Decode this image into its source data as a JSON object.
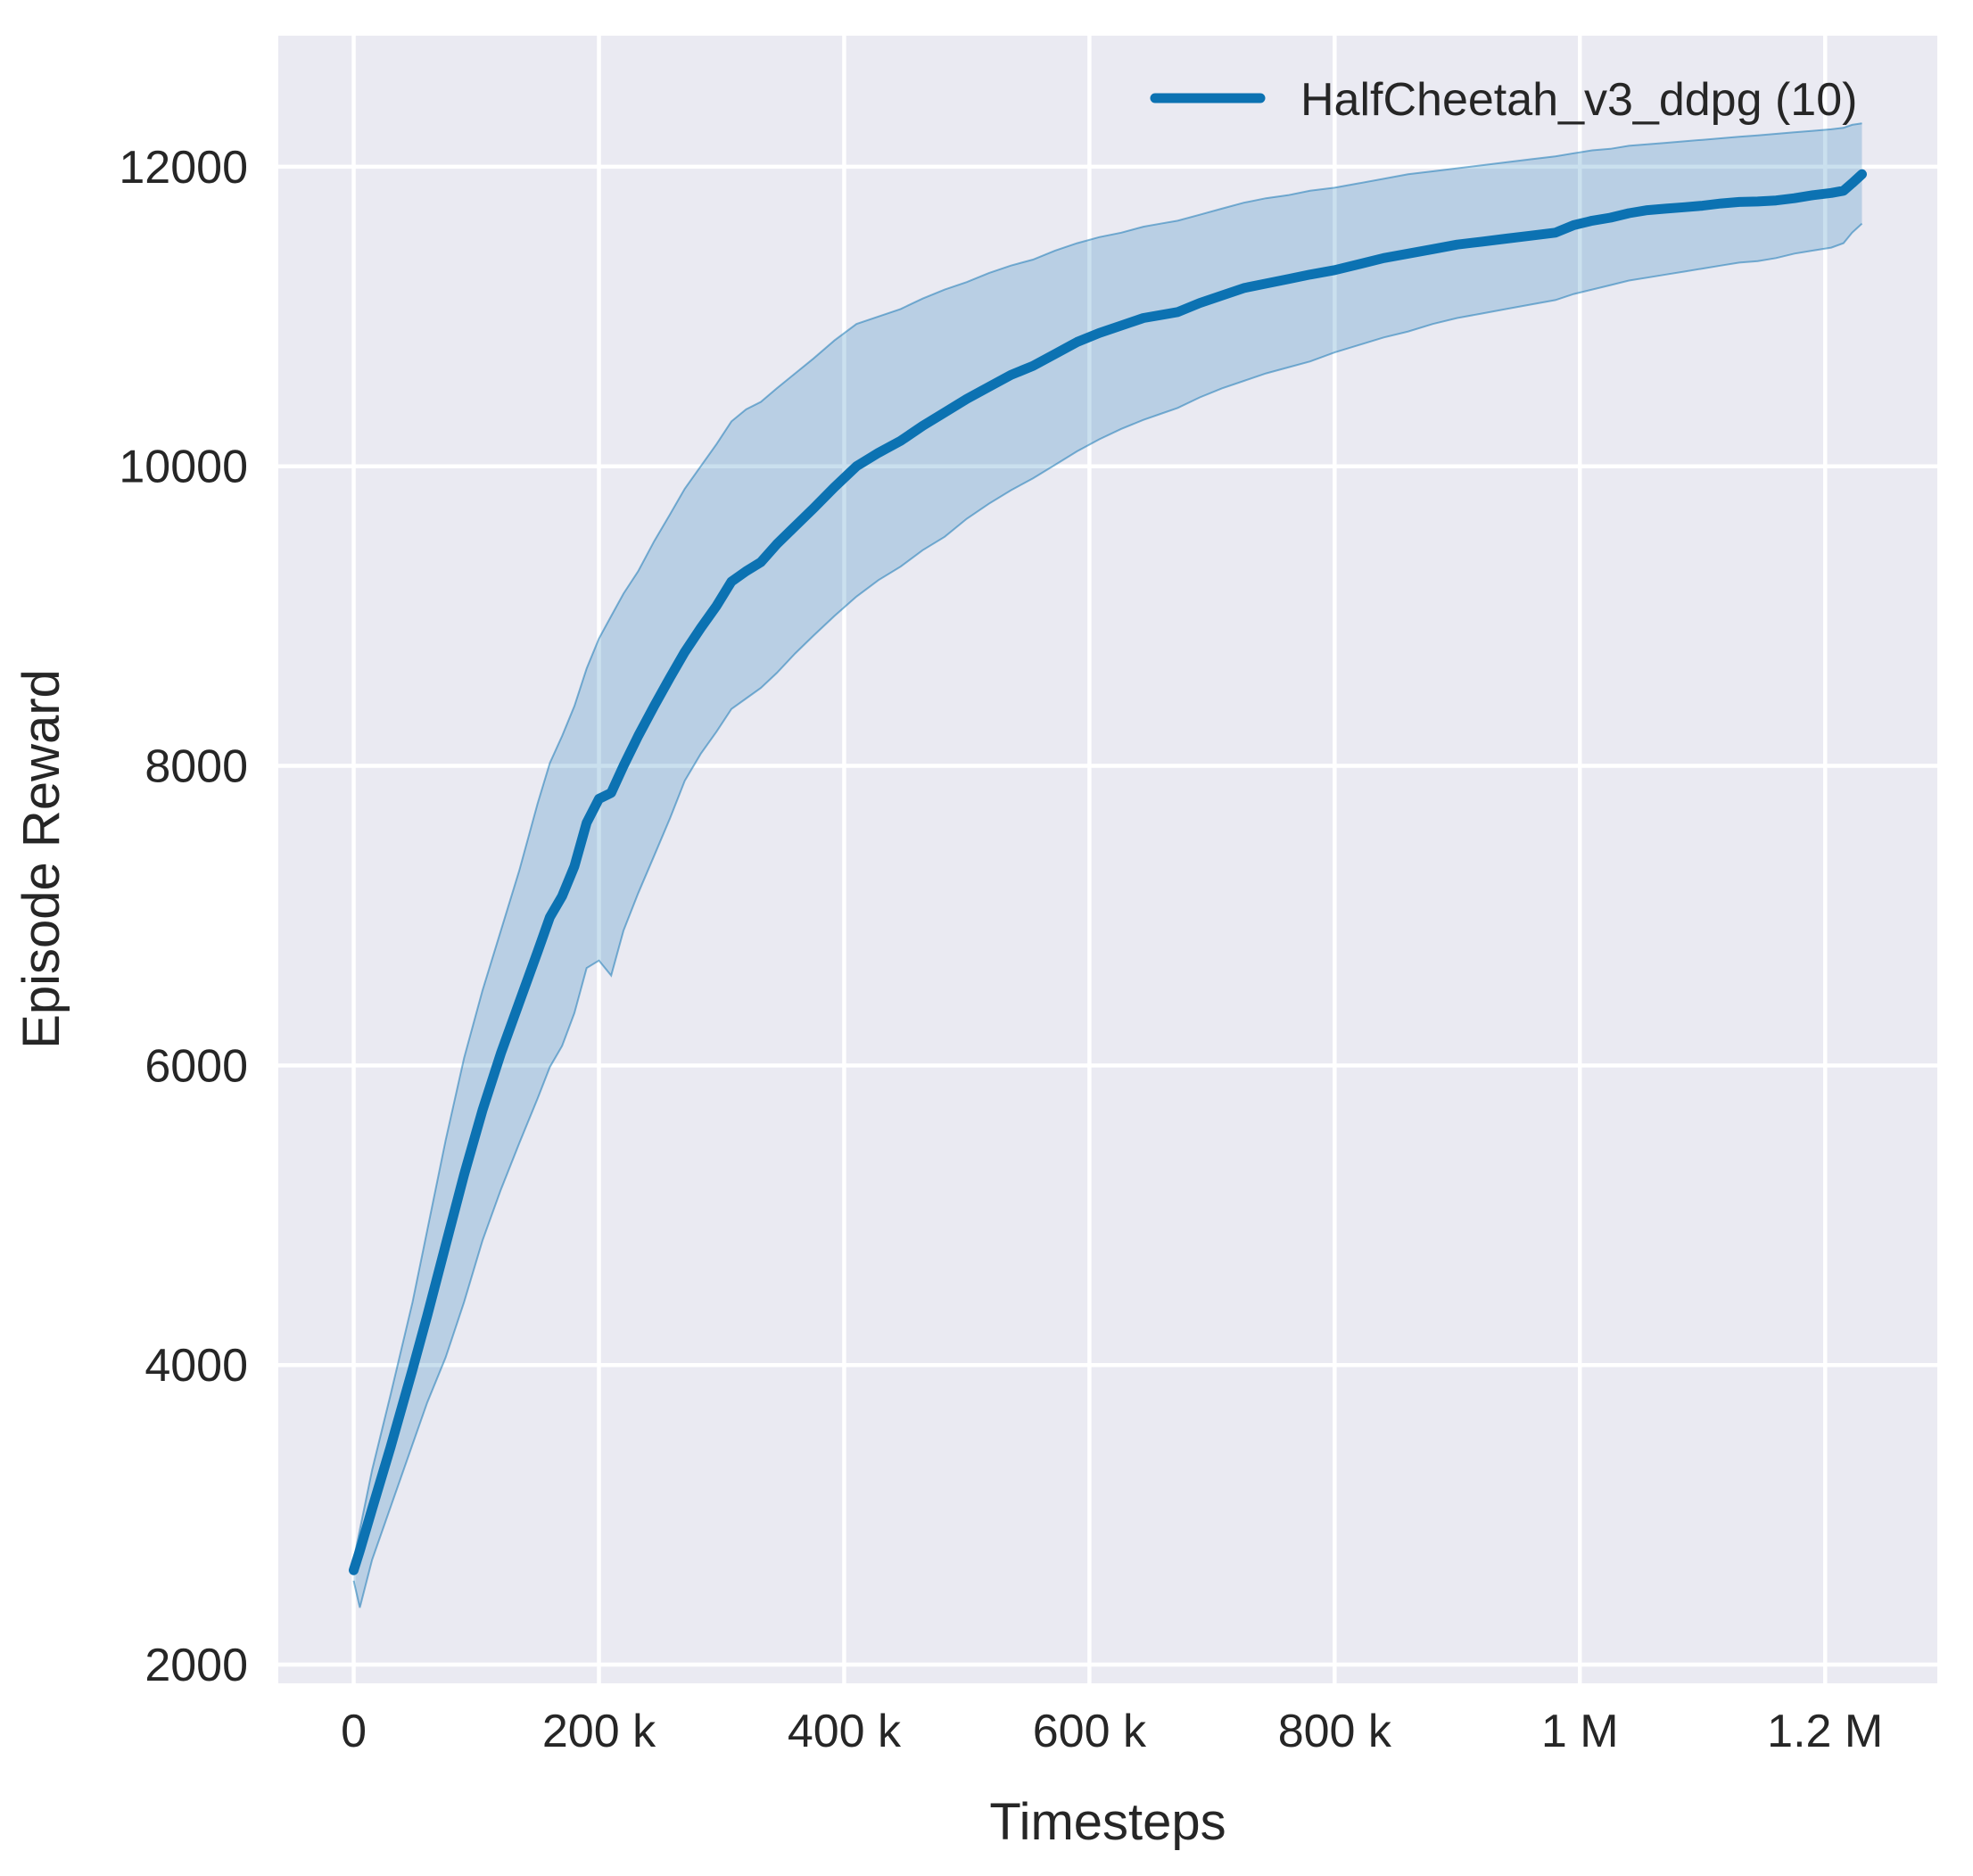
{
  "colors": {
    "figure_bg": "#ffffff",
    "axes_bg": "#eaeaf2",
    "grid": "#ffffff",
    "text": "#262626",
    "line": "#0c72b2",
    "band_fill": "rgba(12,114,178,0.22)",
    "band_edge": "rgba(12,114,178,0.5)"
  },
  "legend": {
    "label": "HalfCheetah_v3_ddpg (10)"
  },
  "chart_data": {
    "type": "line",
    "xlabel": "Timesteps",
    "ylabel": "Episode Reward",
    "grid": true,
    "legend_position": "upper right",
    "xlim": [
      -61500,
      1291500
    ],
    "ylim": [
      1875,
      12875
    ],
    "xticks": [
      {
        "value": 0,
        "label": "0"
      },
      {
        "value": 200000,
        "label": "200 k"
      },
      {
        "value": 400000,
        "label": "400 k"
      },
      {
        "value": 600000,
        "label": "600 k"
      },
      {
        "value": 800000,
        "label": "800 k"
      },
      {
        "value": 1000000,
        "label": "1 M"
      },
      {
        "value": 1200000,
        "label": "1.2 M"
      }
    ],
    "yticks": [
      {
        "value": 2000,
        "label": "2000"
      },
      {
        "value": 4000,
        "label": "4000"
      },
      {
        "value": 6000,
        "label": "6000"
      },
      {
        "value": 8000,
        "label": "8000"
      },
      {
        "value": 10000,
        "label": "10000"
      },
      {
        "value": 12000,
        "label": "12000"
      }
    ],
    "series": [
      {
        "name": "HalfCheetah_v3_ddpg (10)",
        "color": "#0c72b2",
        "band": "std-dev envelope",
        "x": [
          0,
          5000,
          15000,
          30000,
          48000,
          60000,
          75000,
          90000,
          105000,
          120000,
          135000,
          150000,
          160000,
          170000,
          180000,
          190000,
          200000,
          210000,
          220000,
          232000,
          245000,
          258000,
          270000,
          283000,
          296000,
          308000,
          320000,
          332000,
          345000,
          360000,
          375000,
          392000,
          410000,
          428000,
          446000,
          464000,
          482000,
          500000,
          518000,
          536000,
          554000,
          572000,
          590000,
          608000,
          626000,
          644000,
          658000,
          672000,
          690000,
          708000,
          726000,
          744000,
          762000,
          780000,
          800000,
          820000,
          840000,
          860000,
          880000,
          900000,
          920000,
          940000,
          960000,
          980000,
          995000,
          1010000,
          1025000,
          1040000,
          1055000,
          1070000,
          1085000,
          1100000,
          1115000,
          1130000,
          1145000,
          1160000,
          1175000,
          1190000,
          1205000,
          1215000,
          1222000,
          1230000
        ],
        "mean": [
          2630,
          2760,
          3040,
          3450,
          3970,
          4330,
          4800,
          5270,
          5700,
          6080,
          6420,
          6760,
          6990,
          7130,
          7330,
          7620,
          7780,
          7820,
          8000,
          8200,
          8400,
          8590,
          8760,
          8920,
          9070,
          9230,
          9300,
          9360,
          9480,
          9600,
          9720,
          9860,
          10000,
          10090,
          10170,
          10270,
          10360,
          10450,
          10530,
          10610,
          10670,
          10750,
          10830,
          10890,
          10940,
          10990,
          11010,
          11030,
          11090,
          11140,
          11190,
          11220,
          11250,
          11280,
          11310,
          11350,
          11390,
          11420,
          11450,
          11480,
          11500,
          11520,
          11540,
          11560,
          11610,
          11640,
          11660,
          11690,
          11710,
          11720,
          11730,
          11740,
          11755,
          11765,
          11768,
          11775,
          11790,
          11810,
          11825,
          11840,
          11890,
          11950
        ],
        "lo": [
          2560,
          2380,
          2700,
          3050,
          3470,
          3750,
          4050,
          4420,
          4830,
          5170,
          5480,
          5780,
          5990,
          6130,
          6350,
          6650,
          6700,
          6600,
          6900,
          7150,
          7400,
          7650,
          7900,
          8080,
          8230,
          8380,
          8450,
          8520,
          8620,
          8750,
          8870,
          9000,
          9130,
          9240,
          9330,
          9440,
          9530,
          9650,
          9750,
          9840,
          9920,
          10010,
          10100,
          10180,
          10250,
          10310,
          10350,
          10390,
          10460,
          10520,
          10570,
          10620,
          10660,
          10700,
          10760,
          10810,
          10860,
          10900,
          10950,
          10990,
          11020,
          11050,
          11080,
          11110,
          11150,
          11180,
          11210,
          11240,
          11260,
          11280,
          11300,
          11320,
          11340,
          11360,
          11370,
          11390,
          11420,
          11440,
          11460,
          11490,
          11560,
          11620
        ],
        "hi": [
          2700,
          2900,
          3300,
          3800,
          4420,
          4900,
          5500,
          6050,
          6500,
          6900,
          7300,
          7750,
          8020,
          8200,
          8400,
          8650,
          8850,
          9000,
          9150,
          9300,
          9500,
          9680,
          9850,
          10000,
          10150,
          10300,
          10380,
          10430,
          10520,
          10620,
          10720,
          10840,
          10950,
          11000,
          11050,
          11120,
          11180,
          11230,
          11290,
          11340,
          11380,
          11440,
          11490,
          11530,
          11560,
          11600,
          11620,
          11640,
          11680,
          11720,
          11760,
          11790,
          11810,
          11840,
          11860,
          11890,
          11920,
          11950,
          11970,
          11990,
          12010,
          12030,
          12050,
          12070,
          12090,
          12110,
          12120,
          12140,
          12150,
          12160,
          12170,
          12180,
          12190,
          12200,
          12210,
          12220,
          12230,
          12240,
          12250,
          12260,
          12280,
          12290
        ]
      }
    ]
  }
}
